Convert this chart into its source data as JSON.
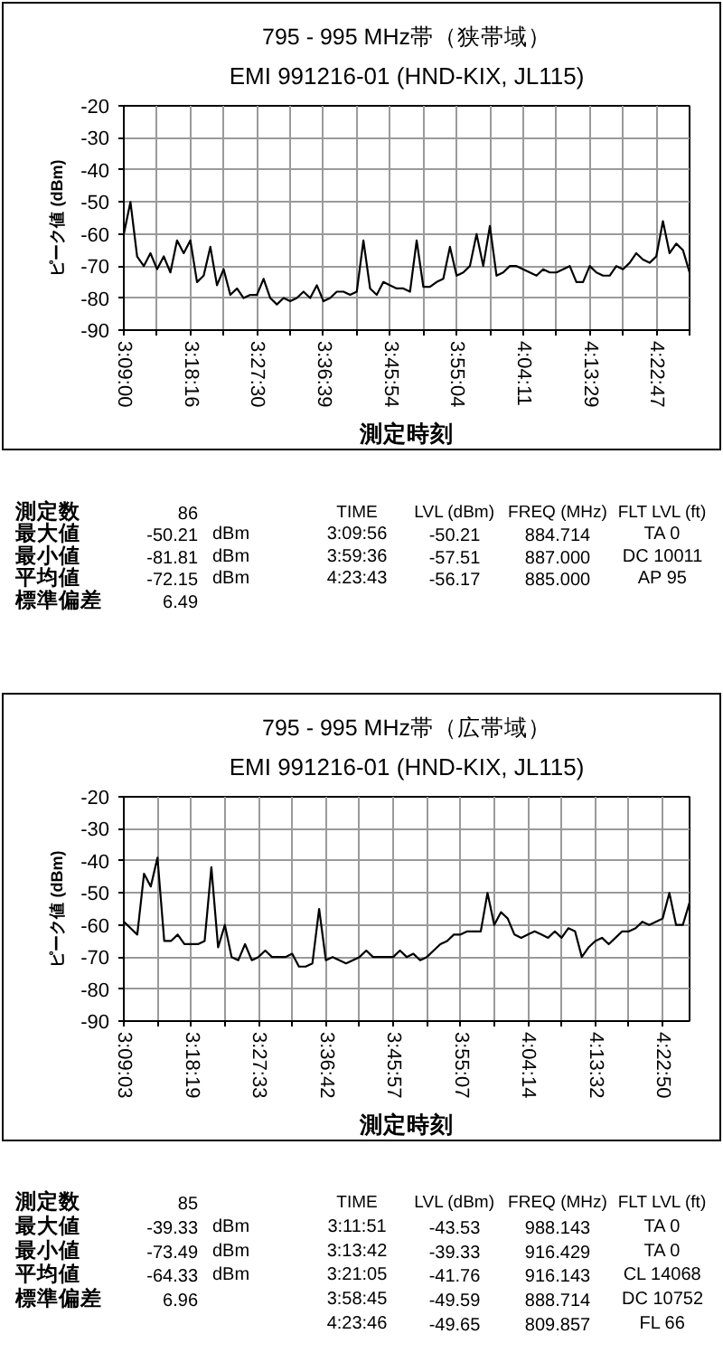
{
  "chart_data": [
    {
      "type": "line",
      "title": "795 - 995 MHz帯（狭帯域）",
      "subtitle": "EMI 991216-01 (HND-KIX, JL115)",
      "xlabel": "測定時刻",
      "ylabel": "ピーク値 (dBm)",
      "categories": [
        "3:09:00",
        null,
        null,
        null,
        null,
        null,
        null,
        null,
        null,
        null,
        "3:18:16",
        null,
        null,
        null,
        null,
        null,
        null,
        null,
        null,
        null,
        "3:27:30",
        null,
        null,
        null,
        null,
        null,
        null,
        null,
        null,
        null,
        "3:36:39",
        null,
        null,
        null,
        null,
        null,
        null,
        null,
        null,
        null,
        "3:45:54",
        null,
        null,
        null,
        null,
        null,
        null,
        null,
        null,
        null,
        "3:55:04",
        null,
        null,
        null,
        null,
        null,
        null,
        null,
        null,
        null,
        "4:04:11",
        null,
        null,
        null,
        null,
        null,
        null,
        null,
        null,
        null,
        "4:13:29",
        null,
        null,
        null,
        null,
        null,
        null,
        null,
        null,
        null,
        "4:22:47",
        null,
        null,
        null,
        null,
        null
      ],
      "series": [
        {
          "color": "#000000",
          "values": [
            -60,
            -50,
            -67,
            -70,
            -66,
            -71,
            -67,
            -72,
            -62,
            -66,
            -62,
            -75,
            -73,
            -64,
            -76,
            -71,
            -79,
            -77,
            -80,
            -79,
            -79,
            -74,
            -80,
            -82,
            -80,
            -81,
            -80,
            -78,
            -80,
            -76,
            -81,
            -80,
            -78,
            -78,
            -79,
            -78,
            -62,
            -77,
            -79,
            -75,
            -76,
            -77,
            -77,
            -78,
            -62,
            -76.5,
            -76.5,
            -75,
            -74,
            -64,
            -73,
            -72,
            -70,
            -60,
            -70,
            -57.5,
            -73,
            -72,
            -70,
            -70,
            -71,
            -72,
            -73,
            -71,
            -72,
            -72,
            -71,
            -70,
            -75,
            -75,
            -70,
            -72,
            -73,
            -73,
            -70,
            -71,
            -69,
            -66,
            -68,
            -69,
            -67,
            -56,
            -66,
            -63,
            -65,
            -72
          ]
        }
      ],
      "ylim": [
        -90,
        -20
      ],
      "yticks": [
        -20,
        -30,
        -40,
        -50,
        -60,
        -70,
        -80,
        -90
      ],
      "grid": true,
      "annotations": [
        "測定数\t86\t\tTIME\tLVL (dBm)\tFREQ (MHz)\tFLT LVL (ft)",
        "最大値\t-50.21\tdBm\t3:09:56\t-50.21\t884.714\tTA 0",
        "最小値\t-81.81\tdBm\t3:59:36\t-57.51\t887.000\tDC 10011",
        "平均値\t-72.15\tdBm\t4:23:43\t-56.17\t885.000\tAP 95",
        "標準偏差\t6.49"
      ]
    },
    {
      "type": "line",
      "title": "795 - 995 MHz帯（広帯域）",
      "subtitle": "EMI 991216-01 (HND-KIX, JL115)",
      "xlabel": "測定時刻",
      "ylabel": "ピーク値 (dBm)",
      "categories": [
        "3:09:03",
        null,
        null,
        null,
        null,
        null,
        null,
        null,
        null,
        null,
        "3:18:19",
        null,
        null,
        null,
        null,
        null,
        null,
        null,
        null,
        null,
        "3:27:33",
        null,
        null,
        null,
        null,
        null,
        null,
        null,
        null,
        null,
        "3:36:42",
        null,
        null,
        null,
        null,
        null,
        null,
        null,
        null,
        null,
        "3:45:57",
        null,
        null,
        null,
        null,
        null,
        null,
        null,
        null,
        null,
        "3:55:07",
        null,
        null,
        null,
        null,
        null,
        null,
        null,
        null,
        null,
        "4:04:14",
        null,
        null,
        null,
        null,
        null,
        null,
        null,
        null,
        null,
        "4:13:32",
        null,
        null,
        null,
        null,
        null,
        null,
        null,
        null,
        null,
        "4:22:50",
        null,
        null,
        null,
        null
      ],
      "series": [
        {
          "color": "#000000",
          "values": [
            -59,
            -61,
            -63,
            -44,
            -48,
            -39,
            -65,
            -65,
            -63,
            -66,
            -66,
            -66,
            -65,
            -42,
            -67,
            -60,
            -70,
            -71,
            -66,
            -71,
            -70,
            -68,
            -70,
            -70,
            -70,
            -69,
            -73,
            -73,
            -72,
            -55,
            -71,
            -70,
            -71,
            -72,
            -71,
            -70,
            -68,
            -70,
            -70,
            -70,
            -70,
            -68,
            -70,
            -69,
            -71,
            -70,
            -68,
            -66,
            -65,
            -63,
            -63,
            -62,
            -62,
            -62,
            -50,
            -60,
            -56,
            -58,
            -63,
            -64,
            -63,
            -62,
            -63,
            -64,
            -62,
            -64,
            -61,
            -62,
            -70,
            -67,
            -65,
            -64,
            -66,
            -64,
            -62,
            -62,
            -61,
            -59,
            -60,
            -59,
            -58,
            -50,
            -60,
            -60,
            -53
          ]
        }
      ],
      "ylim": [
        -90,
        -20
      ],
      "yticks": [
        -20,
        -30,
        -40,
        -50,
        -60,
        -70,
        -80,
        -90
      ],
      "grid": true,
      "annotations": [
        "測定数\t85\t\tTIME\tLVL (dBm)\tFREQ (MHz)\tFLT LVL (ft)",
        "最大値\t-39.33\tdBm\t3:11:51\t-43.53\t988.143\tTA 0",
        "最小値\t-73.49\tdBm\t3:13:42\t-39.33\t916.429\tTA 0",
        "平均値\t-64.33\tdBm\t3:21:05\t-41.76\t916.143\tCL 14068",
        "標準偏差\t6.96\t\t3:58:45\t-49.59\t888.714\tDC 10752",
        "\t\t\t4:23:46\t-49.65\t809.857\tFL 66"
      ]
    }
  ]
}
